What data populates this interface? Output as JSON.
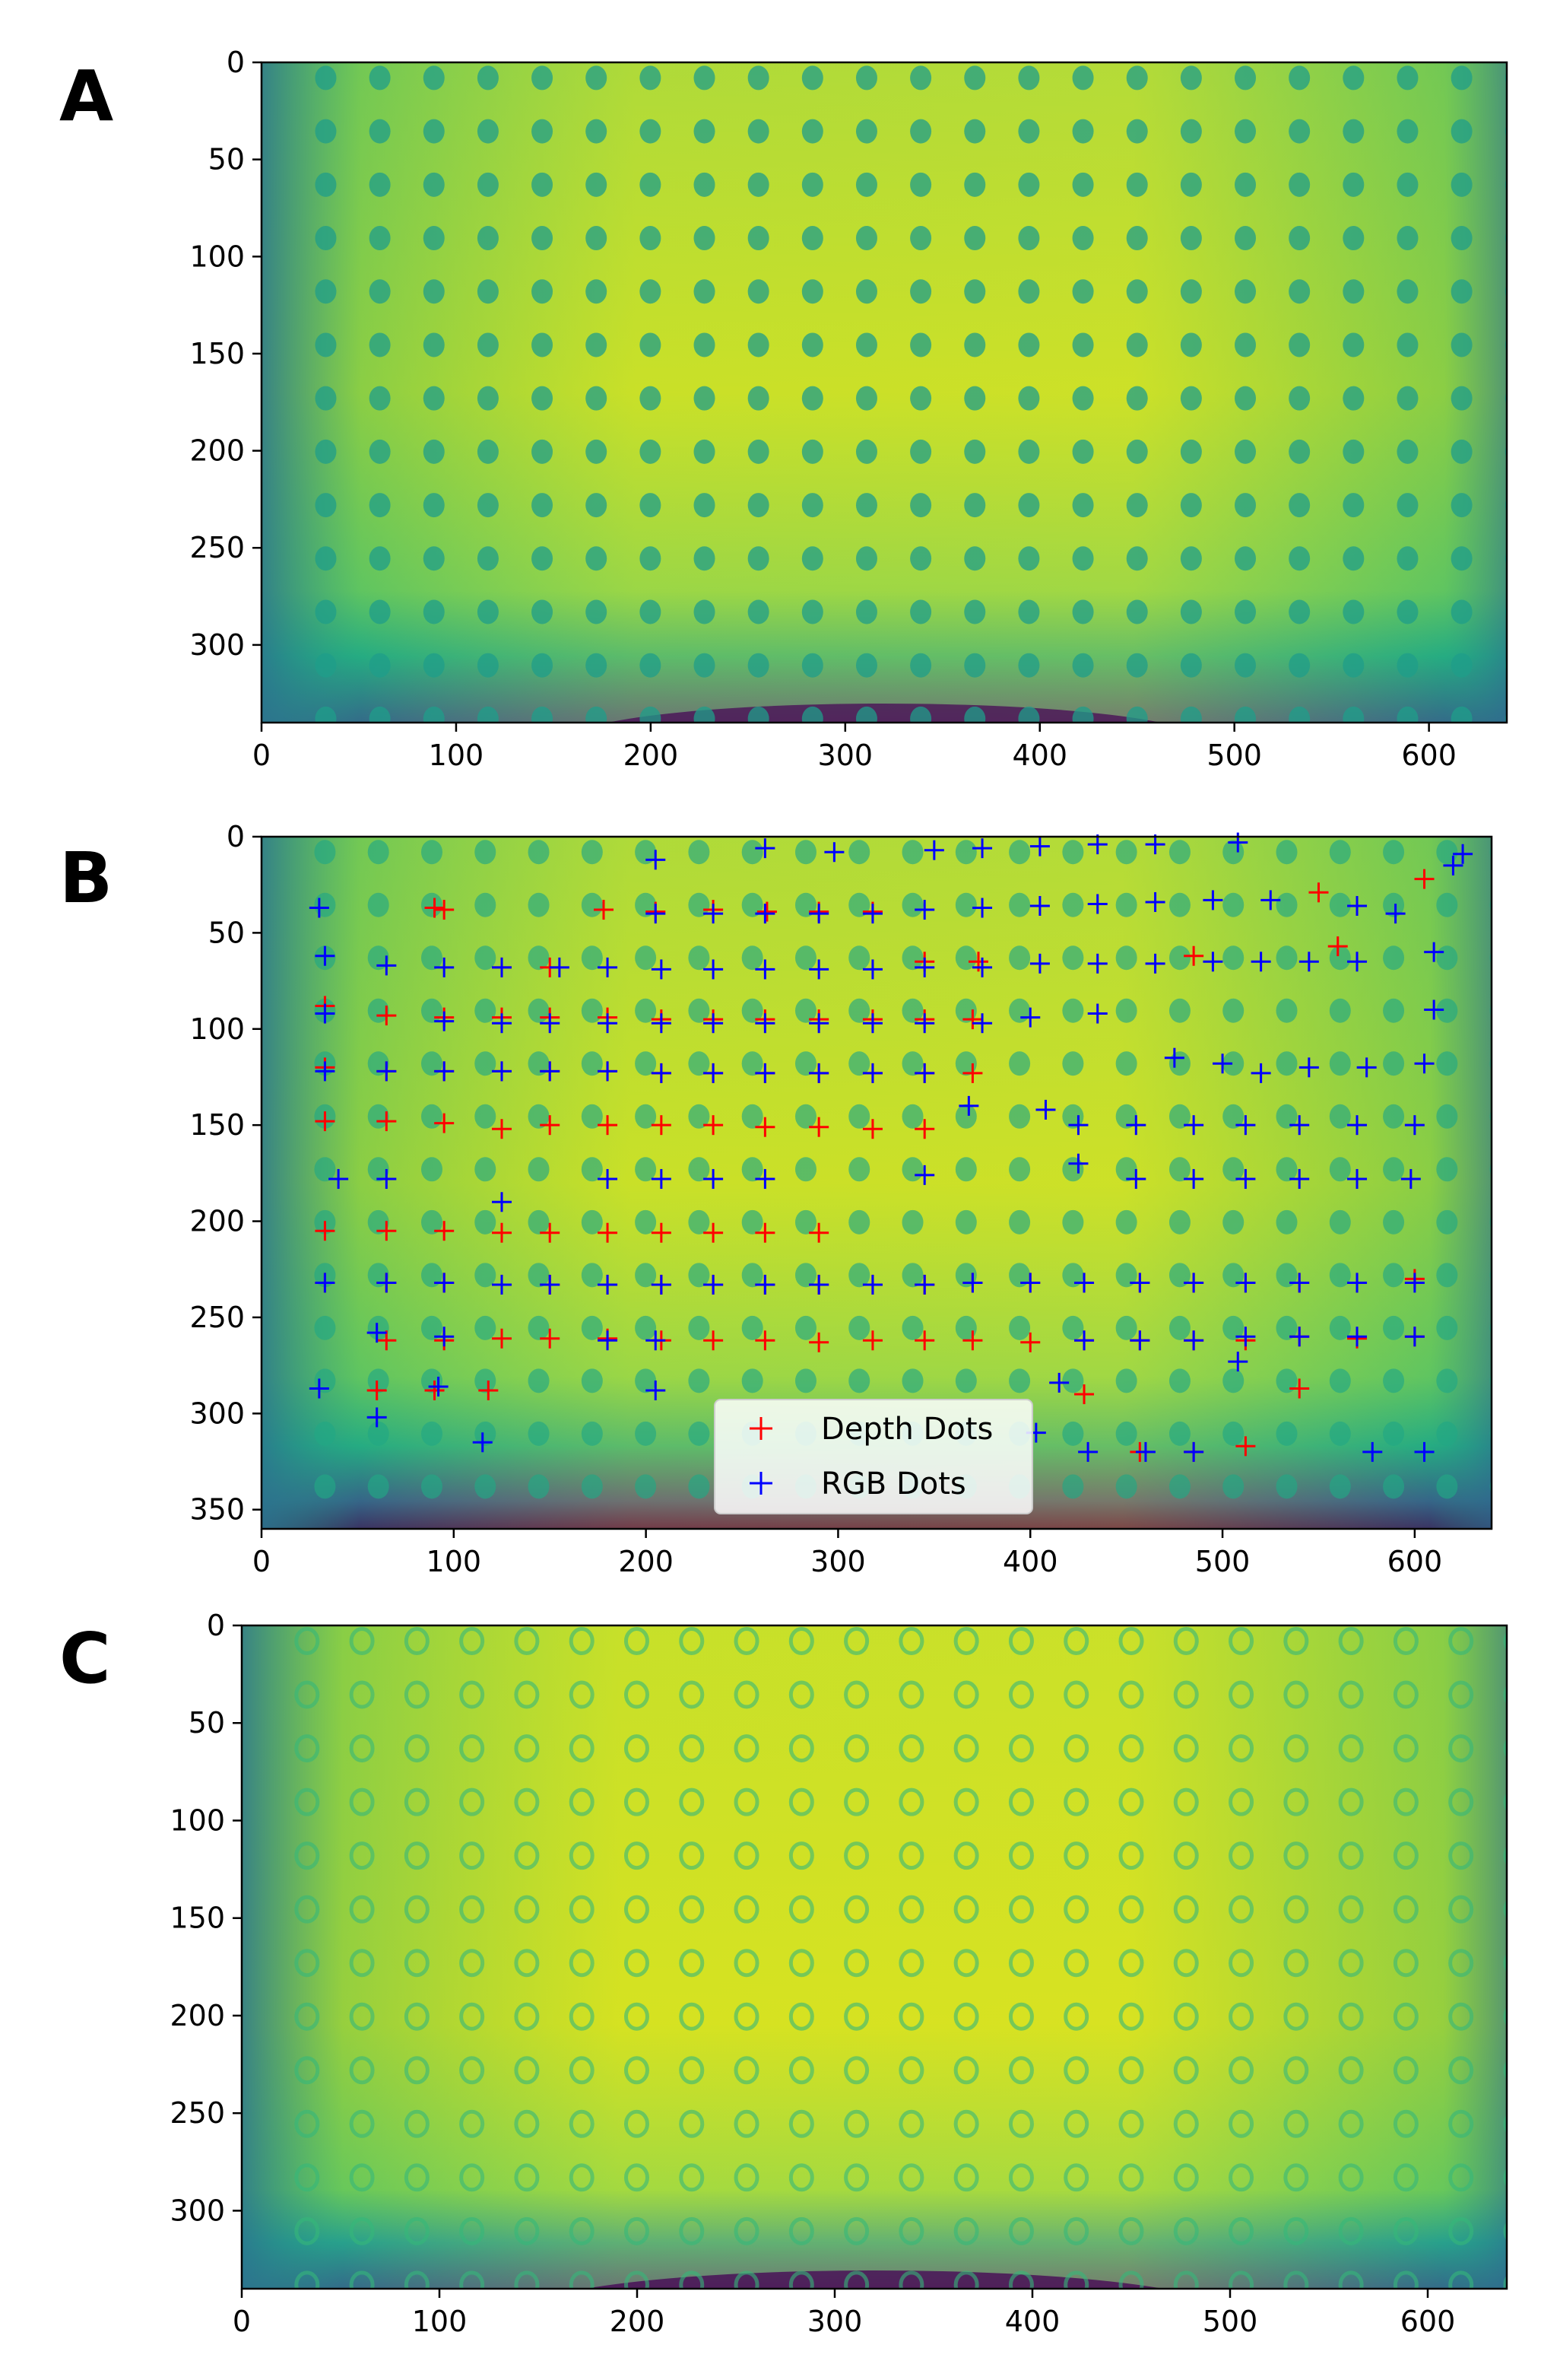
{
  "panels": [
    {
      "letter": "A",
      "xlim": [
        0,
        640
      ],
      "ylim": [
        340,
        0
      ],
      "xticks": [
        0,
        100,
        200,
        300,
        400,
        500,
        600
      ],
      "yticks": [
        0,
        50,
        100,
        150,
        200,
        250,
        300
      ]
    },
    {
      "letter": "B",
      "xlim": [
        0,
        640
      ],
      "ylim": [
        360,
        0
      ],
      "xticks": [
        0,
        100,
        200,
        300,
        400,
        500,
        600
      ],
      "yticks": [
        0,
        50,
        100,
        150,
        200,
        250,
        300,
        350
      ]
    },
    {
      "letter": "C",
      "xlim": [
        0,
        640
      ],
      "ylim": [
        340,
        0
      ],
      "xticks": [
        0,
        100,
        200,
        300,
        400,
        500,
        600
      ],
      "yticks": [
        0,
        50,
        100,
        150,
        200,
        250,
        300
      ]
    }
  ],
  "chart_data": [
    {
      "type": "heatmap",
      "panel": "A",
      "colormap": "viridis",
      "xlim": [
        0,
        640
      ],
      "ylim": [
        340,
        0
      ],
      "grid": false
    },
    {
      "type": "scatter",
      "panel": "B",
      "background": "heatmap",
      "colormap": "viridis",
      "xlim": [
        0,
        640
      ],
      "ylim": [
        360,
        0
      ],
      "grid": false,
      "legend": "lower-center",
      "marker": "+",
      "series": [
        {
          "name": "Depth Dots",
          "color": "#ff0000",
          "x": [
            90,
            95,
            125,
            150,
            178,
            205,
            235,
            263,
            290,
            318,
            345,
            373,
            485,
            550,
            560,
            605,
            33,
            65,
            95,
            125,
            150,
            180,
            208,
            235,
            262,
            290,
            318,
            345,
            370,
            33,
            65,
            95,
            125,
            150,
            180,
            208,
            235,
            262,
            290,
            318,
            345,
            370,
            33,
            65,
            95,
            125,
            150,
            180,
            208,
            235,
            262,
            290,
            318,
            345,
            33,
            65,
            95,
            125,
            150,
            180,
            208,
            235,
            262,
            290,
            33,
            65,
            95,
            125,
            150,
            180,
            208,
            235,
            262,
            290,
            318,
            345,
            370,
            33,
            65,
            95,
            125,
            150,
            180,
            208,
            235,
            262,
            290,
            318,
            345,
            370,
            400,
            428,
            457,
            485,
            512,
            540,
            570,
            600,
            65,
            95,
            125,
            150,
            180,
            208,
            235,
            262,
            290,
            318,
            345,
            370,
            400,
            428,
            457,
            485,
            512,
            540,
            570,
            600,
            60,
            90,
            118,
            428,
            457,
            485,
            512,
            540
          ],
          "y": [
            37,
            38,
            68,
            68,
            38,
            39,
            38,
            39,
            39,
            39,
            65,
            65,
            62,
            29,
            57,
            22,
            88,
            93,
            94,
            94,
            94,
            94,
            95,
            95,
            95,
            95,
            95,
            95,
            95,
            120,
            122,
            122,
            122,
            122,
            122,
            123,
            123,
            123,
            123,
            123,
            123,
            123,
            148,
            148,
            149,
            152,
            150,
            150,
            150,
            150,
            151,
            151,
            152,
            152,
            205,
            205,
            205,
            206,
            206,
            206,
            206,
            206,
            206,
            206,
            232,
            232,
            232,
            233,
            233,
            233,
            233,
            233,
            233,
            233,
            233,
            233,
            232,
            232,
            232,
            232,
            233,
            233,
            233,
            233,
            233,
            233,
            233,
            233,
            233,
            232,
            232,
            232,
            232,
            232,
            232,
            232,
            232,
            230,
            262,
            262,
            261,
            261,
            261,
            262,
            262,
            262,
            263,
            262,
            262,
            262,
            263,
            262,
            262,
            262,
            262,
            260,
            261,
            260,
            288,
            288,
            288,
            290,
            320,
            320,
            317,
            287
          ]
        },
        {
          "name": "RGB Dots",
          "color": "#0000ff",
          "x": [
            205,
            262,
            298,
            350,
            375,
            405,
            435,
            465,
            508,
            620,
            625,
            30,
            205,
            235,
            262,
            290,
            318,
            345,
            375,
            405,
            435,
            465,
            495,
            525,
            570,
            590,
            610,
            33,
            65,
            95,
            125,
            155,
            180,
            208,
            235,
            262,
            290,
            318,
            345,
            375,
            405,
            435,
            465,
            495,
            520,
            545,
            570,
            610,
            33,
            95,
            125,
            150,
            180,
            208,
            235,
            262,
            290,
            318,
            345,
            375,
            400,
            435,
            475,
            500,
            520,
            545,
            575,
            605,
            33,
            65,
            95,
            125,
            150,
            180,
            208,
            235,
            262,
            290,
            318,
            345,
            368,
            408,
            425,
            455,
            485,
            512,
            540,
            570,
            600,
            40,
            65,
            125,
            180,
            208,
            235,
            262,
            345,
            425,
            455,
            485,
            512,
            540,
            570,
            598,
            33,
            65,
            95,
            125,
            150,
            180,
            208,
            235,
            262,
            290,
            318,
            345,
            370,
            400,
            428,
            457,
            485,
            512,
            540,
            570,
            600,
            60,
            95,
            180,
            205,
            428,
            457,
            485,
            512,
            540,
            570,
            600,
            30,
            60,
            92,
            115,
            205,
            415,
            403,
            430,
            460,
            485,
            508,
            578,
            605
          ],
          "y": [
            12,
            6,
            8,
            7,
            6,
            5,
            4,
            4,
            3,
            15,
            9,
            37,
            40,
            40,
            40,
            40,
            40,
            38,
            37,
            36,
            35,
            34,
            33,
            33,
            36,
            40,
            60,
            62,
            67,
            68,
            68,
            68,
            68,
            69,
            69,
            69,
            69,
            69,
            68,
            68,
            66,
            66,
            66,
            65,
            65,
            65,
            65,
            90,
            92,
            96,
            97,
            97,
            97,
            97,
            97,
            97,
            97,
            97,
            97,
            97,
            94,
            92,
            115,
            118,
            123,
            120,
            120,
            118,
            122,
            122,
            122,
            122,
            122,
            122,
            123,
            123,
            123,
            123,
            123,
            123,
            140,
            142,
            150,
            150,
            150,
            150,
            150,
            150,
            150,
            178,
            178,
            190,
            178,
            178,
            178,
            178,
            176,
            170,
            178,
            178,
            178,
            178,
            178,
            178,
            232,
            232,
            232,
            233,
            233,
            233,
            233,
            233,
            233,
            233,
            233,
            233,
            232,
            232,
            232,
            232,
            232,
            232,
            232,
            232,
            232,
            258,
            260,
            262,
            262,
            262,
            262,
            262,
            260,
            260,
            260,
            260,
            287,
            302,
            286,
            315,
            288,
            284,
            310,
            320,
            320,
            320,
            273,
            320,
            320
          ]
        }
      ]
    },
    {
      "type": "heatmap",
      "panel": "C",
      "colormap": "viridis",
      "xlim": [
        0,
        640
      ],
      "ylim": [
        340,
        0
      ],
      "grid": false
    }
  ]
}
